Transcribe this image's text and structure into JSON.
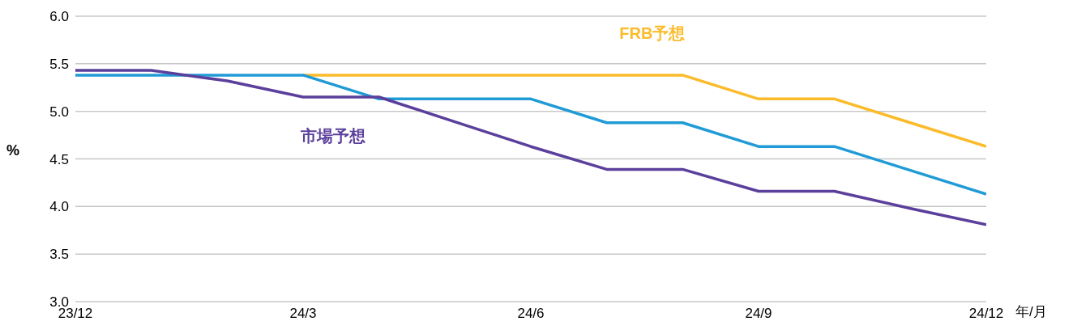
{
  "chart_data": {
    "type": "line",
    "xlabel": "年/月",
    "ylabel": "%",
    "categories": [
      "23/12",
      null,
      null,
      "24/3",
      null,
      null,
      "24/6",
      null,
      null,
      "24/9",
      null,
      null,
      "24/12"
    ],
    "series": [
      {
        "name": "FRB予想",
        "color": "#fbbb2a",
        "values": [
          null,
          null,
          null,
          5.38,
          5.38,
          5.38,
          5.38,
          5.38,
          5.38,
          5.13,
          5.13,
          4.88,
          4.63
        ]
      },
      {
        "color": "#209bd6",
        "values": [
          5.38,
          5.38,
          5.38,
          5.38,
          5.13,
          5.13,
          5.13,
          4.88,
          4.88,
          4.63,
          4.63,
          4.38,
          4.13
        ]
      },
      {
        "name": "市場予想",
        "color": "#5b3f9c",
        "values": [
          5.43,
          5.43,
          5.32,
          5.15,
          5.15,
          4.89,
          4.63,
          4.39,
          4.39,
          4.16,
          4.16,
          3.98,
          3.81
        ]
      }
    ],
    "ylim": [
      3.0,
      6.0
    ],
    "yticks": [
      {
        "value": 3,
        "label": "3.0"
      },
      3.5,
      {
        "value": 4,
        "label": "4.0"
      },
      4.5,
      {
        "value": 5,
        "label": "5.0"
      },
      5.5,
      {
        "value": 6,
        "label": "6.0"
      }
    ],
    "grid": "y",
    "marker": "none",
    "line_style": "solid"
  }
}
